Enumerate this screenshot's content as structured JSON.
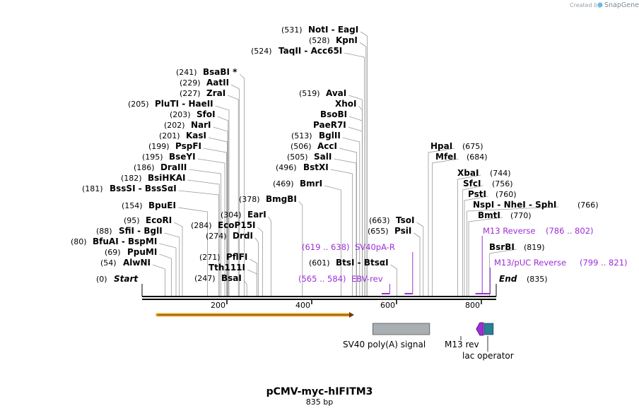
{
  "watermark": {
    "prefix": "Created by",
    "brand": "SnapGene"
  },
  "plasmid": {
    "name": "pCMV-myc-hIFITM3",
    "length_label": "835 bp",
    "length": 835
  },
  "ends": {
    "start_label": "Start",
    "start_pos": "(0)",
    "end_label": "End",
    "end_pos": "(835)"
  },
  "ruler": {
    "ticks": [
      {
        "value": 200,
        "label": "200"
      },
      {
        "value": 400,
        "label": "400"
      },
      {
        "value": 600,
        "label": "600"
      },
      {
        "value": 800,
        "label": "800"
      }
    ]
  },
  "sites": [
    {
      "pos": "(531)",
      "name": "NotI  -  EagI",
      "site": 531
    },
    {
      "pos": "(528)",
      "name": "KpnI",
      "site": 528
    },
    {
      "pos": "(524)",
      "name": "TaqII  -  Acc65I",
      "site": 524
    },
    {
      "pos": "(241)",
      "name": "BsaBI *",
      "site": 241
    },
    {
      "pos": "(229)",
      "name": "AatII",
      "site": 229
    },
    {
      "pos": "(227)",
      "name": "ZraI",
      "site": 227
    },
    {
      "pos": "(205)",
      "name": "PluTI  -  HaeII",
      "site": 205
    },
    {
      "pos": "(203)",
      "name": "SfoI",
      "site": 203
    },
    {
      "pos": "(202)",
      "name": "NarI",
      "site": 202
    },
    {
      "pos": "(201)",
      "name": "KasI",
      "site": 201
    },
    {
      "pos": "(199)",
      "name": "PspFI",
      "site": 199
    },
    {
      "pos": "(195)",
      "name": "BseYI",
      "site": 195
    },
    {
      "pos": "(186)",
      "name": "DraIII",
      "site": 186
    },
    {
      "pos": "(182)",
      "name": "BsiHKAI",
      "site": 182
    },
    {
      "pos": "(181)",
      "name": "BssSI  -  BssSαI",
      "site": 181
    },
    {
      "pos": "(154)",
      "name": "BpuEI",
      "site": 154
    },
    {
      "pos": "(95)",
      "name": "EcoRI",
      "site": 95
    },
    {
      "pos": "(88)",
      "name": "SfiI  -  BglI",
      "site": 88
    },
    {
      "pos": "(80)",
      "name": "BfuAI  -  BspMI",
      "site": 80
    },
    {
      "pos": "(69)",
      "name": "PpuMI",
      "site": 69
    },
    {
      "pos": "(54)",
      "name": "AlwNI",
      "site": 54
    },
    {
      "pos": "(378)",
      "name": "BmgBI",
      "site": 378
    },
    {
      "pos": "(304)",
      "name": "EarI",
      "site": 304
    },
    {
      "pos": "(284)",
      "name": "EcoP15I",
      "site": 284
    },
    {
      "pos": "(274)",
      "name": "DrdI",
      "site": 274
    },
    {
      "pos": "(271)",
      "name": "PflFI",
      "site": 271
    },
    {
      "pos": "",
      "name": "Tth111I",
      "site": 271
    },
    {
      "pos": "(247)",
      "name": "BsaI",
      "site": 247
    },
    {
      "pos": "(519)",
      "name": "AvaI",
      "site": 519
    },
    {
      "pos": "",
      "name": "XhoI",
      "site": 519
    },
    {
      "pos": "",
      "name": "BsoBI",
      "site": 519
    },
    {
      "pos": "",
      "name": "PaeR7I",
      "site": 519
    },
    {
      "pos": "(513)",
      "name": "BglII",
      "site": 513
    },
    {
      "pos": "(506)",
      "name": "AccI",
      "site": 506
    },
    {
      "pos": "(505)",
      "name": "SalI",
      "site": 505
    },
    {
      "pos": "(496)",
      "name": "BstXI",
      "site": 496
    },
    {
      "pos": "(469)",
      "name": "BmrI",
      "site": 469
    },
    {
      "pos": "(663)",
      "name": "TsoI",
      "site": 663
    },
    {
      "pos": "(655)",
      "name": "PsiI",
      "site": 655
    },
    {
      "pos": "(601)",
      "name": "BtsI  -  BtsαI",
      "site": 601
    },
    {
      "pos": "(675)",
      "name": "HpaI",
      "site": 675
    },
    {
      "pos": "(684)",
      "name": "MfeI",
      "site": 684
    },
    {
      "pos": "(744)",
      "name": "XbaI",
      "site": 744
    },
    {
      "pos": "(756)",
      "name": "SfcI",
      "site": 756
    },
    {
      "pos": "(760)",
      "name": "PstI",
      "site": 760
    },
    {
      "pos": "(766)",
      "name": "NspI  -  NheI  -  SphI",
      "site": 766
    },
    {
      "pos": "(770)",
      "name": "BmtI",
      "site": 770
    },
    {
      "pos": "(819)",
      "name": "BsrBI",
      "site": 819
    }
  ],
  "primers": [
    {
      "name": "M13 Reverse",
      "range": "(786 .. 802)",
      "start": 786,
      "end": 802
    },
    {
      "name": "SV40pA-R",
      "range": "(619 .. 638)",
      "start": 619,
      "end": 638
    },
    {
      "name": "M13/pUC Reverse",
      "range": "(799 .. 821)",
      "start": 799,
      "end": 821
    },
    {
      "name": "EBV-rev",
      "range": "(565 .. 584)",
      "start": 565,
      "end": 584
    }
  ],
  "features": [
    {
      "name": "SV40 poly(A) signal",
      "start": 544,
      "end": 678,
      "color": "#a9aeb3"
    },
    {
      "name": "M13 rev",
      "start": 788,
      "end": 805,
      "color": "#9b2fd6"
    },
    {
      "name": "lac operator",
      "start": 807,
      "end": 828,
      "color": "#2b7f95"
    }
  ],
  "orf": {
    "start": 36,
    "end": 500,
    "color": "#f0a830"
  }
}
